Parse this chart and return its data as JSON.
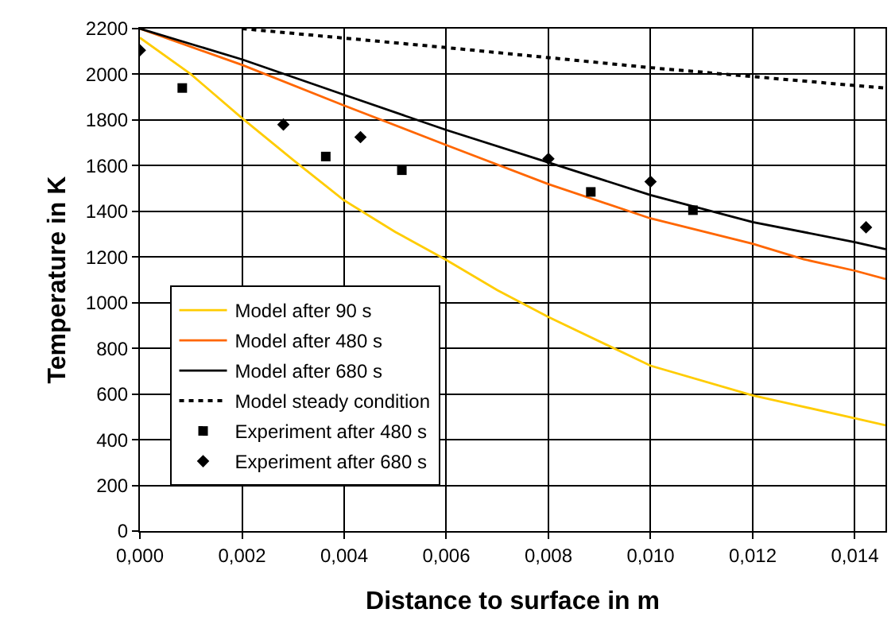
{
  "chart_data": {
    "type": "line",
    "xlabel": "Distance to surface in m",
    "ylabel": "Temperature in K",
    "xlim": [
      0,
      0.0146
    ],
    "ylim": [
      0,
      2200
    ],
    "xticks": [
      {
        "value": 0,
        "label": "0,000"
      },
      {
        "value": 0.002,
        "label": "0,002"
      },
      {
        "value": 0.004,
        "label": "0,004"
      },
      {
        "value": 0.006,
        "label": "0,006"
      },
      {
        "value": 0.008,
        "label": "0,008"
      },
      {
        "value": 0.01,
        "label": "0,010"
      },
      {
        "value": 0.012,
        "label": "0,012"
      },
      {
        "value": 0.014,
        "label": "0,014"
      }
    ],
    "yticks": [
      0,
      200,
      400,
      600,
      800,
      1000,
      1200,
      1400,
      1600,
      1800,
      2000,
      2200
    ],
    "grid": true,
    "legend": "bottom left",
    "series": [
      {
        "name": "Model after 90 s",
        "color": "#ffcc00",
        "line_style": "solid",
        "marker": "none",
        "x": [
          0,
          0.001,
          0.002,
          0.003,
          0.004,
          0.005,
          0.006,
          0.007,
          0.008,
          0.01,
          0.012,
          0.014,
          0.0146
        ],
        "values": [
          2160,
          2000,
          1808,
          1625,
          1448,
          1310,
          1187,
          1055,
          937,
          724,
          594,
          494,
          463
        ]
      },
      {
        "name": "Model after 480 s",
        "color": "#ff6600",
        "line_style": "solid",
        "marker": "none",
        "x": [
          0,
          0.002,
          0.004,
          0.006,
          0.008,
          0.01,
          0.012,
          0.013,
          0.014,
          0.0146
        ],
        "values": [
          2200,
          2041,
          1863,
          1690,
          1519,
          1369,
          1258,
          1190,
          1140,
          1104
        ]
      },
      {
        "name": "Model after 680 s",
        "color": "#000000",
        "line_style": "solid",
        "marker": "none",
        "x": [
          0,
          0.002,
          0.004,
          0.006,
          0.008,
          0.01,
          0.012,
          0.014,
          0.0146
        ],
        "values": [
          2200,
          2065,
          1910,
          1756,
          1614,
          1471,
          1353,
          1265,
          1234
        ]
      },
      {
        "name": "Model steady condition",
        "color": "#000000",
        "line_style": "dotted",
        "marker": "none",
        "x": [
          0.002,
          0.006,
          0.01,
          0.014,
          0.0146
        ],
        "values": [
          2200,
          2117,
          2029,
          1951,
          1940
        ]
      },
      {
        "name": "Experiment after 480 s",
        "type": "scatter",
        "color": "#000000",
        "marker": "square",
        "x": [
          0.00083,
          0.00364,
          0.00513,
          0.00883,
          0.01083
        ],
        "values": [
          1940,
          1640,
          1580,
          1485,
          1405
        ]
      },
      {
        "name": "Experiment after 680 s",
        "type": "scatter",
        "color": "#000000",
        "marker": "diamond",
        "x": [
          0,
          0.00281,
          0.00432,
          0.008,
          0.01,
          0.01422
        ],
        "values": [
          2105,
          1780,
          1725,
          1630,
          1530,
          1330
        ]
      }
    ]
  }
}
